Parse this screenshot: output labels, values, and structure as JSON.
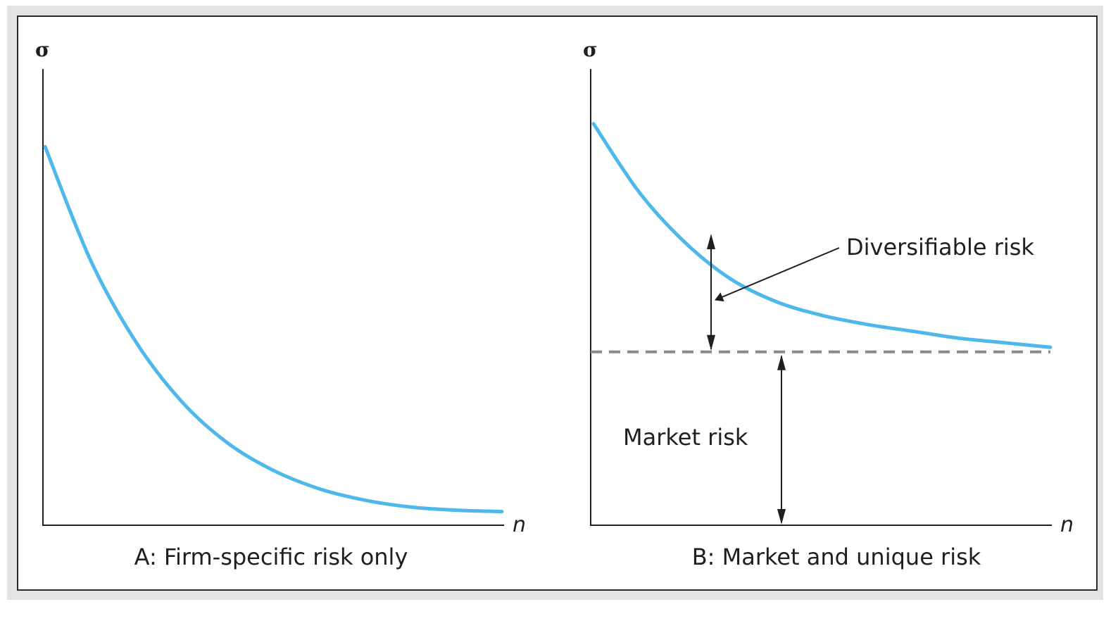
{
  "colors": {
    "curve": "#4fb8ea",
    "axis": "#1f1f1f",
    "market_line": "#8a8a8a"
  },
  "chart_data": [
    {
      "type": "line",
      "caption": "A:  Firm-specific risk only",
      "ylabel": "σ",
      "xlabel": "n",
      "x": [
        0,
        1,
        2,
        3,
        4,
        5,
        6,
        7,
        8,
        9,
        10
      ],
      "series": [
        {
          "values": [
            83,
            58,
            40,
            27,
            18,
            12,
            8,
            5.5,
            4,
            3.3,
            3
          ]
        }
      ],
      "ylim": [
        0,
        100
      ],
      "xlim": [
        0,
        10
      ]
    },
    {
      "type": "line",
      "caption": "B:  Market and unique risk",
      "ylabel": "σ",
      "xlabel": "n",
      "x": [
        0,
        1,
        2,
        3,
        4,
        5,
        6,
        7,
        8,
        9,
        10
      ],
      "series": [
        {
          "values": [
            88,
            73,
            62,
            54,
            49,
            46,
            44,
            42.5,
            41,
            40,
            39
          ]
        }
      ],
      "market_risk_level": 38,
      "annotations": {
        "diversifiable": "Diversifiable risk",
        "market": "Market risk"
      },
      "ylim": [
        0,
        100
      ],
      "xlim": [
        0,
        10
      ]
    }
  ]
}
